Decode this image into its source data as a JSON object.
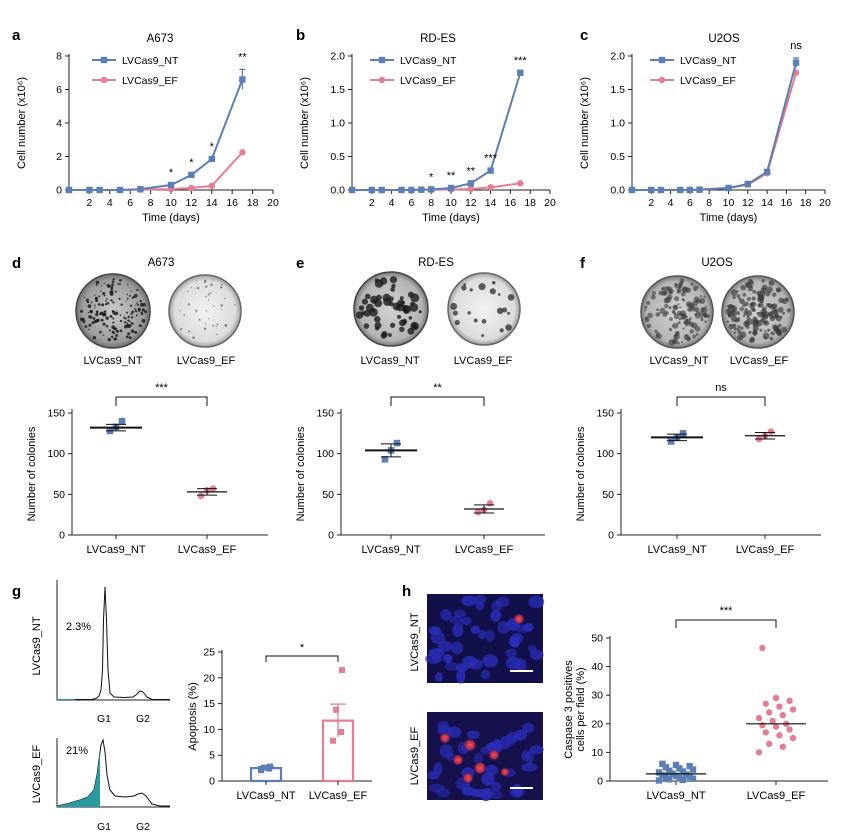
{
  "colors": {
    "nt": "#5B7FB5",
    "ef": "#E57E93",
    "axis": "#222222",
    "teal": "#2A9BA0"
  },
  "legend": {
    "nt": "LVCas9_NT",
    "ef": "LVCas9_EF"
  },
  "panels": {
    "a": {
      "label": "a",
      "title": "A673",
      "ylabel": "Cell number (x10⁶)",
      "xlabel": "Time (days)"
    },
    "b": {
      "label": "b",
      "title": "RD-ES",
      "ylabel": "Cell number (x10⁶)",
      "xlabel": "Time (days)"
    },
    "c": {
      "label": "c",
      "title": "U2OS",
      "ylabel": "Cell number (x10⁶)",
      "xlabel": "Time (days)"
    },
    "d": {
      "label": "d",
      "title": "A673",
      "ylabel": "Number of colonies",
      "sig": "***"
    },
    "e": {
      "label": "e",
      "title": "RD-ES",
      "ylabel": "Number of colonies",
      "sig": "**"
    },
    "f": {
      "label": "f",
      "title": "U2OS",
      "ylabel": "Number of colonies",
      "sig": "ns"
    },
    "g": {
      "label": "g",
      "ylabel": "Apoptosis (%)",
      "sig": "*",
      "flow_nt_pct": "2.3%",
      "flow_ef_pct": "21%",
      "row_nt": "LVCas9_NT",
      "row_ef": "LVCas9_EF",
      "g1": "G1",
      "g2": "G2"
    },
    "h": {
      "label": "h",
      "ylabel1": "Caspase 3 positives",
      "ylabel2": "cells per field (%)",
      "sig": "***",
      "row_nt": "LVCas9_NT",
      "row_ef": "LVCas9_EF"
    }
  },
  "chart_data": [
    {
      "id": "a",
      "type": "line",
      "title": "A673",
      "xlabel": "Time (days)",
      "ylabel": "Cell number (x10⁶)",
      "xlim": [
        0,
        20
      ],
      "xticks": [
        2,
        4,
        6,
        8,
        10,
        12,
        14,
        16,
        18,
        20
      ],
      "ylim": [
        0,
        8
      ],
      "yticks": [
        0,
        2,
        4,
        6,
        8
      ],
      "x": [
        0,
        2,
        3,
        5,
        7,
        10,
        12,
        14,
        17
      ],
      "series": [
        {
          "name": "LVCas9_NT",
          "values": [
            0,
            0,
            0,
            0,
            0.05,
            0.3,
            0.9,
            1.85,
            6.6
          ],
          "err_last": 0.6
        },
        {
          "name": "LVCas9_EF",
          "values": [
            0,
            0,
            0,
            0,
            0.02,
            0.05,
            0.12,
            0.25,
            2.25
          ]
        }
      ],
      "annotations": [
        {
          "x": 10,
          "text": "*"
        },
        {
          "x": 12,
          "text": "*"
        },
        {
          "x": 14,
          "text": "*"
        },
        {
          "x": 17,
          "text": "**"
        }
      ]
    },
    {
      "id": "b",
      "type": "line",
      "title": "RD-ES",
      "xlabel": "Time (days)",
      "ylabel": "Cell number (x10⁶)",
      "xlim": [
        0,
        20
      ],
      "xticks": [
        2,
        4,
        6,
        8,
        10,
        12,
        14,
        16,
        18,
        20
      ],
      "ylim": [
        0,
        2.0
      ],
      "yticks": [
        0,
        0.5,
        1.0,
        1.5,
        2.0
      ],
      "x": [
        0,
        2,
        3,
        5,
        6,
        7,
        8,
        10,
        12,
        14,
        17
      ],
      "series": [
        {
          "name": "LVCas9_NT",
          "values": [
            0,
            0,
            0,
            0,
            0,
            0.005,
            0.01,
            0.03,
            0.1,
            0.29,
            1.75
          ]
        },
        {
          "name": "LVCas9_EF",
          "values": [
            0,
            0,
            0,
            0,
            0,
            0.002,
            0.004,
            0.008,
            0.015,
            0.04,
            0.1
          ]
        }
      ],
      "annotations": [
        {
          "x": 8,
          "text": "*"
        },
        {
          "x": 10,
          "text": "**"
        },
        {
          "x": 12,
          "text": "**"
        },
        {
          "x": 14,
          "text": "***"
        },
        {
          "x": 17,
          "text": "***"
        }
      ]
    },
    {
      "id": "c",
      "type": "line",
      "title": "U2OS",
      "xlabel": "Time (days)",
      "ylabel": "Cell number (x10⁶)",
      "xlim": [
        0,
        20
      ],
      "xticks": [
        2,
        4,
        6,
        8,
        10,
        12,
        14,
        16,
        18,
        20
      ],
      "ylim": [
        0,
        2.0
      ],
      "yticks": [
        0,
        0.5,
        1.0,
        1.5,
        2.0
      ],
      "x": [
        0,
        2,
        3,
        5,
        6,
        7,
        10,
        12,
        14,
        17
      ],
      "series": [
        {
          "name": "LVCas9_NT",
          "values": [
            0,
            0,
            0,
            0,
            0,
            0.005,
            0.03,
            0.09,
            0.27,
            1.9
          ],
          "err_last": 0.07
        },
        {
          "name": "LVCas9_EF",
          "values": [
            0,
            0,
            0,
            0,
            0,
            0.005,
            0.03,
            0.08,
            0.25,
            1.75
          ]
        }
      ],
      "annotations": [
        {
          "x": 17,
          "text": "ns"
        }
      ]
    },
    {
      "id": "d",
      "type": "scatter",
      "categories": [
        "LVCas9_NT",
        "LVCas9_EF"
      ],
      "ylabel": "Number of colonies",
      "ylim": [
        0,
        150
      ],
      "yticks": [
        0,
        50,
        100,
        150
      ],
      "series": [
        {
          "name": "LVCas9_NT",
          "mean": 132,
          "sem": 4,
          "points": [
            128,
            133,
            140
          ]
        },
        {
          "name": "LVCas9_EF",
          "mean": 53,
          "sem": 4,
          "points": [
            48,
            55,
            57
          ]
        }
      ],
      "significance": "***"
    },
    {
      "id": "e",
      "type": "scatter",
      "categories": [
        "LVCas9_NT",
        "LVCas9_EF"
      ],
      "ylabel": "Number of colonies",
      "ylim": [
        0,
        150
      ],
      "yticks": [
        0,
        50,
        100,
        150
      ],
      "series": [
        {
          "name": "LVCas9_NT",
          "mean": 104,
          "sem": 8,
          "points": [
            93,
            104,
            113
          ]
        },
        {
          "name": "LVCas9_EF",
          "mean": 32,
          "sem": 5,
          "points": [
            28,
            31,
            39
          ]
        }
      ],
      "significance": "**"
    },
    {
      "id": "f",
      "type": "scatter",
      "categories": [
        "LVCas9_NT",
        "LVCas9_EF"
      ],
      "ylabel": "Number of colonies",
      "ylim": [
        0,
        150
      ],
      "yticks": [
        0,
        50,
        100,
        150
      ],
      "series": [
        {
          "name": "LVCas9_NT",
          "mean": 120,
          "sem": 4,
          "points": [
            115,
            120,
            125
          ]
        },
        {
          "name": "LVCas9_EF",
          "mean": 122,
          "sem": 4,
          "points": [
            118,
            122,
            127
          ]
        }
      ],
      "significance": "ns"
    },
    {
      "id": "g",
      "type": "bar",
      "categories": [
        "LVCas9_NT",
        "LVCas9_EF"
      ],
      "ylabel": "Apoptosis (%)",
      "ylim": [
        0,
        25
      ],
      "yticks": [
        0,
        5,
        10,
        15,
        20,
        25
      ],
      "series": [
        {
          "name": "LVCas9_NT",
          "mean": 2.5,
          "sem": 0.3,
          "points": [
            2.1,
            2.4,
            2.6,
            2.8
          ]
        },
        {
          "name": "LVCas9_EF",
          "mean": 11.7,
          "sem": 3.2,
          "points": [
            7.8,
            9.5,
            13.8,
            21.5
          ]
        }
      ],
      "significance": "*"
    },
    {
      "id": "h",
      "type": "scatter",
      "categories": [
        "LVCas9_NT",
        "LVCas9_EF"
      ],
      "ylabel": "Caspase 3 positives cells per field (%)",
      "ylim": [
        0,
        50
      ],
      "yticks": [
        0,
        10,
        20,
        30,
        40,
        50
      ],
      "series": [
        {
          "name": "LVCas9_NT",
          "mean": 2.5,
          "points": [
            0.2,
            0.4,
            0.6,
            0.8,
            1,
            1.2,
            1.5,
            1.8,
            2,
            2.3,
            2.6,
            3,
            3.3,
            3.6,
            4,
            4.4,
            4.8,
            5.2,
            5.6,
            6
          ]
        },
        {
          "name": "LVCas9_EF",
          "mean": 20,
          "points": [
            10,
            12,
            13,
            15,
            16,
            17,
            18,
            19,
            19.5,
            20,
            21,
            22,
            23,
            24,
            25,
            26,
            27,
            28,
            29,
            46.5
          ]
        }
      ],
      "significance": "***"
    }
  ]
}
